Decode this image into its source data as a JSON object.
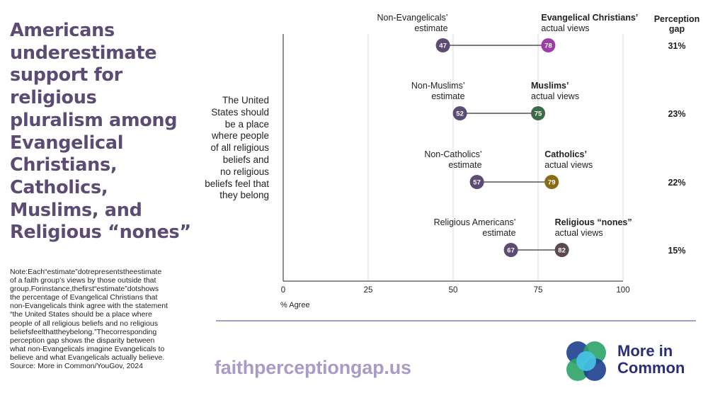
{
  "headline": "Americans\nunderestimate\nsupport for religious\npluralism among\nEvangelical\nChristians,\nCatholics,\nMuslims, and\nReligious “nones”",
  "note": "Note:Each“estimate”dotrepresentstheestimate\nof a faith group’s views by those outside that\ngroup.Forinstance,thefirst“estimate”dotshows\nthe percentage of Evangelical Christians that\nnon-Evangelicals think agree with the statement\n“the United States should be a place where\npeople of all religious beliefs and no religious\nbeliefsfeelthattheybelong.”Thecorresponding\nperception gap shows the disparity between\nwhat non-Evangelicals imagine Evangelicals to\nbelieve and what Evangelicals actually believe.\nSource: More in Common/YouGov, 2024",
  "statement": "The United\nStates should\nbe a place\nwhere people\nof all religious\nbeliefs and\nno religious\nbeliefs feel that\nthey belong",
  "url": "faithperceptiongap.us",
  "logo_text": "More in\nCommon",
  "colors": {
    "estimate": "#5c4b73",
    "connector": "#555555",
    "grid": "#dcdcdc",
    "axis": "#222222",
    "accent": "#a99bc6",
    "logo_blue": "#1e3f8f",
    "logo_green": "#2ea36a",
    "logo_cyan": "#47c4e8"
  },
  "chart_data": {
    "type": "dumbbell",
    "title": "",
    "xlabel": "% Agree",
    "xlim": [
      0,
      100
    ],
    "xticks": [
      0,
      25,
      50,
      75,
      100
    ],
    "gap_header": "Perception\ngap",
    "grid": "vertical",
    "rows": [
      {
        "estimate_label": "Non-Evangelicals’\nestimate",
        "actual_label_bold": "Evangelical Christians’",
        "actual_label": "actual views",
        "estimate": 47,
        "actual": 78,
        "gap": "31%",
        "actual_color": "#9c3fa5"
      },
      {
        "estimate_label": "Non-Muslims’\nestimate",
        "actual_label_bold": "Muslims’",
        "actual_label": "actual views",
        "estimate": 52,
        "actual": 75,
        "gap": "23%",
        "actual_color": "#3e6b47"
      },
      {
        "estimate_label": "Non-Catholics’\nestimate",
        "actual_label_bold": "Catholics’",
        "actual_label": "actual views",
        "estimate": 57,
        "actual": 79,
        "gap": "22%",
        "actual_color": "#8a6a12"
      },
      {
        "estimate_label": "Religious Americans’\nestimate",
        "actual_label_bold": "Religious “nones”",
        "actual_label": "actual views",
        "estimate": 67,
        "actual": 82,
        "gap": "15%",
        "actual_color": "#5c4950"
      }
    ]
  }
}
